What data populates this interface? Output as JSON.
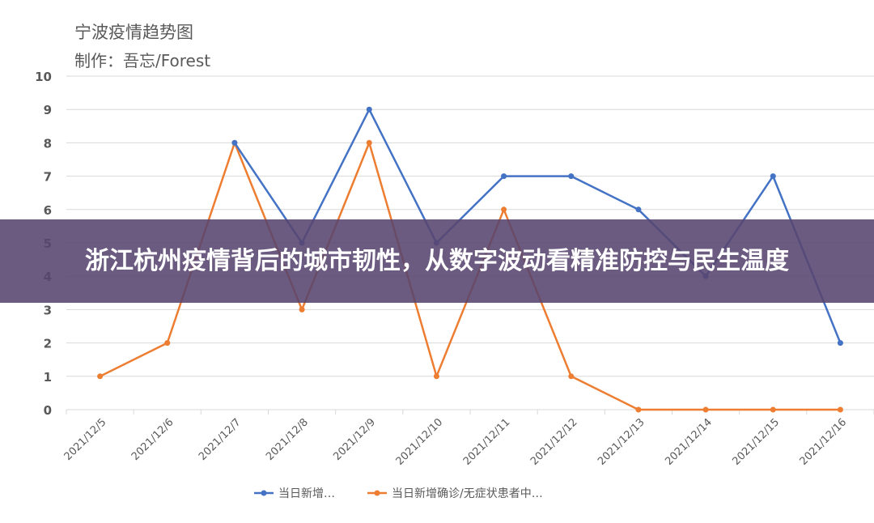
{
  "title": "宁波疫情趋势图",
  "subtitle": "制作：吾忘/Forest",
  "banner": "浙江杭州疫情背后的城市韧性，从数字波动看精准防控与民生温度",
  "chart_data": {
    "type": "line",
    "categories": [
      "2021/12/5",
      "2021/12/6",
      "2021/12/7",
      "2021/12/8",
      "2021/12/9",
      "2021/12/10",
      "2021/12/11",
      "2021/12/12",
      "2021/12/13",
      "2021/12/14",
      "2021/12/15",
      "2021/12/16"
    ],
    "ylim": [
      0,
      10
    ],
    "yticks": [
      0,
      1,
      2,
      3,
      4,
      5,
      6,
      7,
      8,
      9,
      10
    ],
    "grid": true,
    "legend_position": "bottom",
    "series": [
      {
        "name": "当日新增…",
        "color": "#4472c4",
        "values": [
          null,
          null,
          8,
          5,
          9,
          5,
          7,
          7,
          6,
          4,
          7,
          2
        ]
      },
      {
        "name": "当日新增确诊/无症状患者中…",
        "color": "#ed7d31",
        "values": [
          1,
          2,
          8,
          3,
          8,
          1,
          6,
          1,
          0,
          0,
          0,
          0
        ]
      }
    ]
  }
}
